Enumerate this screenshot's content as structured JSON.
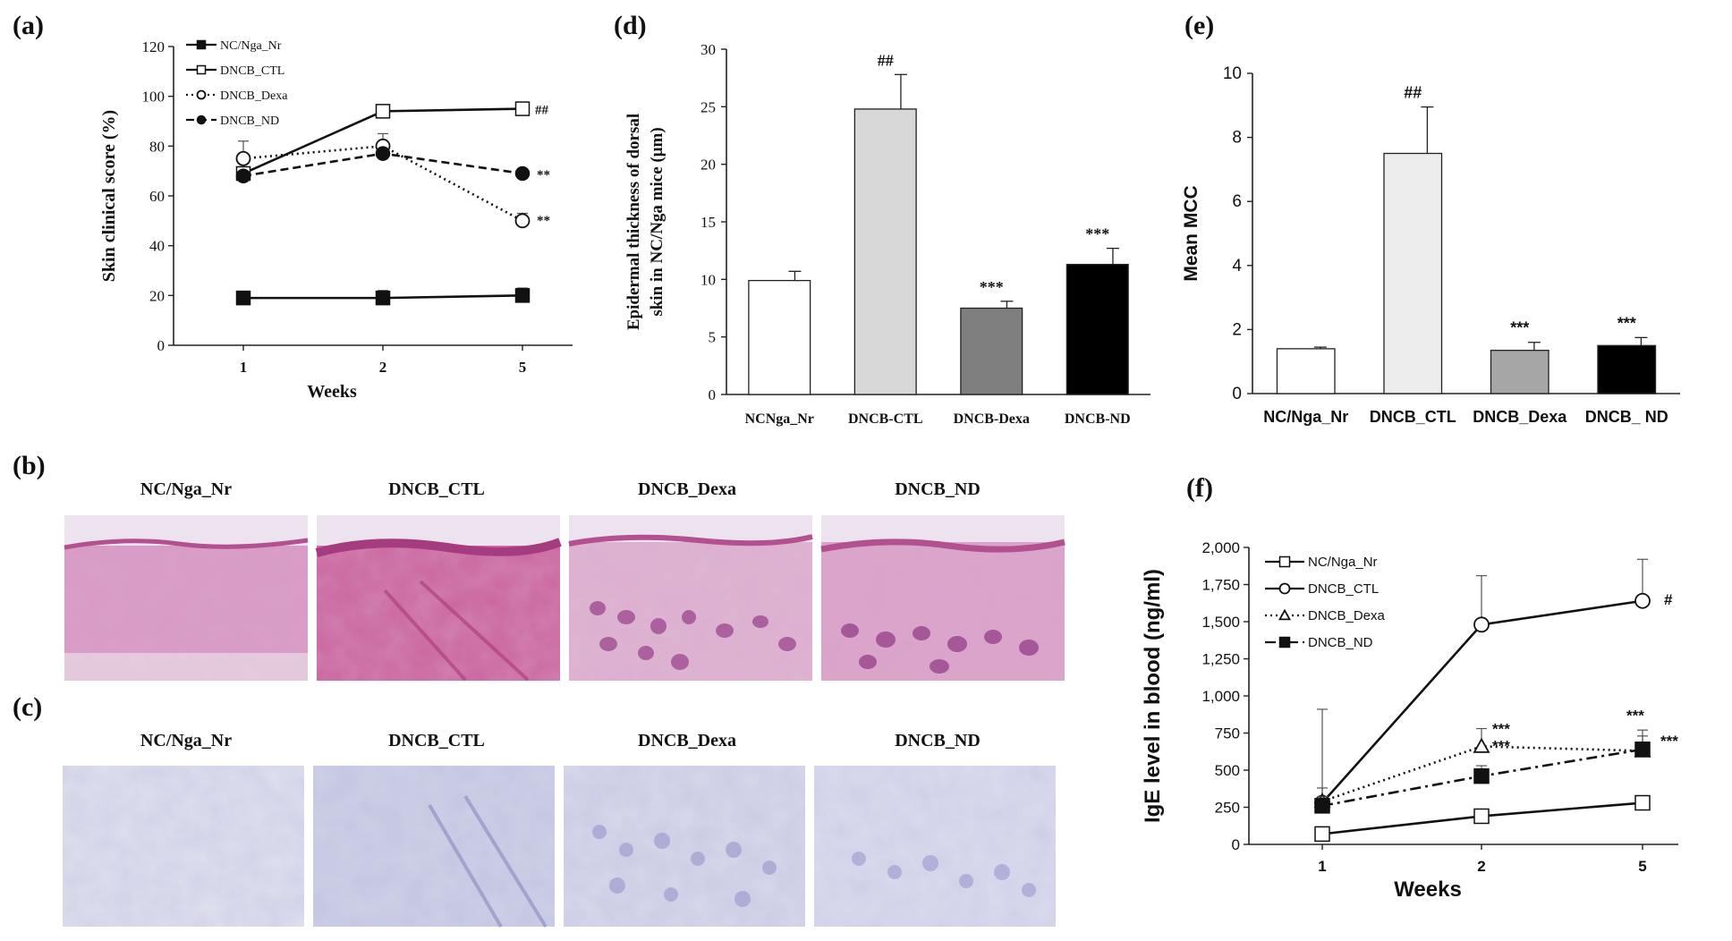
{
  "chart_data": [
    {
      "panel": "(a)",
      "type": "line",
      "xlabel": "Weeks",
      "ylabel": "Skin clinical score (%)",
      "categories": [
        "1",
        "2",
        "5"
      ],
      "ylim": [
        0,
        120
      ],
      "yticks": [
        "0",
        "20",
        "40",
        "60",
        "80",
        "100",
        "120"
      ],
      "series": [
        {
          "name": "NC/Nga_Nr",
          "values": [
            19,
            19,
            20
          ],
          "errors": [
            1.5,
            3,
            3
          ],
          "style": "solid",
          "marker": "square-filled"
        },
        {
          "name": "DNCB_CTL",
          "values": [
            69,
            94,
            95
          ],
          "errors": [
            0,
            2,
            1
          ],
          "style": "solid",
          "marker": "square-open",
          "annotations": [
            "",
            "",
            "##"
          ]
        },
        {
          "name": "DNCB_Dexa",
          "values": [
            75,
            80,
            50
          ],
          "errors": [
            7,
            5,
            3
          ],
          "style": "dotted",
          "marker": "circle-open",
          "annotations": [
            "",
            "",
            "**"
          ]
        },
        {
          "name": "DNCB_ND",
          "values": [
            68,
            77,
            69
          ],
          "errors": [
            0,
            2,
            0
          ],
          "style": "dashed",
          "marker": "circle-filled",
          "annotations": [
            "",
            "",
            "**"
          ]
        }
      ]
    },
    {
      "panel": "(d)",
      "type": "bar",
      "ylabel": "Epidermal thickness of dorsal skin in NC/Nga mice (μm)",
      "ylabel_lines": [
        "Epidermal thickness of dorsal",
        "skin in NC/Nga mice (μm)"
      ],
      "categories": [
        "NCNga_Nr",
        "DNCB-CTL",
        "DNCB-Dexa",
        "DNCB-ND"
      ],
      "values": [
        9.9,
        24.8,
        7.5,
        11.3
      ],
      "errors": [
        0.8,
        3.0,
        0.6,
        1.4
      ],
      "annotations": [
        "",
        "##",
        "***",
        "***"
      ],
      "colors": [
        "#ffffff",
        "#d8d8d8",
        "#7f7f7f",
        "#000000"
      ],
      "ylim": [
        0,
        30
      ],
      "yticks": [
        "0",
        "5",
        "10",
        "15",
        "20",
        "25",
        "30"
      ]
    },
    {
      "panel": "(e)",
      "type": "bar",
      "ylabel": "Mean MCC",
      "categories": [
        "NC/Nga_Nr",
        "DNCB_CTL",
        "DNCB_Dexa",
        "DNCB_ ND"
      ],
      "values": [
        1.4,
        7.5,
        1.35,
        1.5
      ],
      "errors": [
        0.05,
        1.45,
        0.25,
        0.25
      ],
      "annotations": [
        "",
        "##",
        "***",
        "***"
      ],
      "colors": [
        "#ffffff",
        "#ededed",
        "#a6a6a6",
        "#000000"
      ],
      "ylim": [
        0,
        10
      ],
      "yticks": [
        "0",
        "2",
        "4",
        "6",
        "8",
        "10"
      ]
    },
    {
      "panel": "(f)",
      "type": "line",
      "xlabel": "Weeks",
      "ylabel": "IgE level in blood (ng/ml)",
      "categories": [
        "1",
        "2",
        "5"
      ],
      "ylim": [
        0,
        2000
      ],
      "yticks": [
        "0",
        "250",
        "500",
        "750",
        "1,000",
        "1,250",
        "1,500",
        "1,750",
        "2,000"
      ],
      "series": [
        {
          "name": "NC/Nga_Nr",
          "values": [
            70,
            190,
            280
          ],
          "errors": [
            0,
            0,
            0
          ],
          "style": "solid",
          "marker": "square-open"
        },
        {
          "name": "DNCB_CTL",
          "values": [
            280,
            1480,
            1640
          ],
          "errors": [
            630,
            330,
            280
          ],
          "style": "solid",
          "marker": "circle-open",
          "annotations": [
            "",
            "",
            "#"
          ]
        },
        {
          "name": "DNCB_Dexa",
          "values": [
            290,
            660,
            630
          ],
          "errors": [
            90,
            120,
            100
          ],
          "style": "dotted",
          "marker": "triangle-open",
          "annotations": [
            "",
            "***",
            "***"
          ]
        },
        {
          "name": "DNCB_ND",
          "values": [
            260,
            460,
            640
          ],
          "errors": [
            60,
            70,
            130
          ],
          "style": "dashdot",
          "marker": "square-filled",
          "annotations": [
            "",
            "***",
            "***"
          ]
        }
      ]
    }
  ],
  "panels": {
    "b": {
      "label": "(b)",
      "titles": [
        "NC/Nga_Nr",
        "DNCB_CTL",
        "DNCB_Dexa",
        "DNCB_ND"
      ]
    },
    "c": {
      "label": "(c)",
      "titles": [
        "NC/Nga_Nr",
        "DNCB_CTL",
        "DNCB_Dexa",
        "DNCB_ND"
      ]
    }
  }
}
